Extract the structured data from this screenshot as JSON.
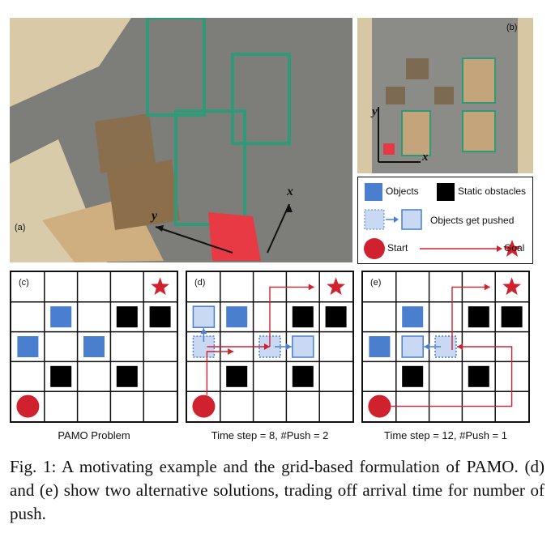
{
  "photo_a": {
    "label": "(a)",
    "axis_x": "x",
    "axis_y": "y"
  },
  "photo_b": {
    "label": "(b)",
    "axis_x": "x",
    "axis_y": "y"
  },
  "legend": {
    "objects": "Objects",
    "static_obstacles": "Static obstacles",
    "objects_pushed": "Objects get pushed",
    "start": "Start",
    "goal": "Goal"
  },
  "panel_c": {
    "label": "(c)",
    "caption": "PAMO Problem"
  },
  "panel_d": {
    "label": "(d)",
    "caption": "Time step = 8, #Push = 2"
  },
  "panel_e": {
    "label": "(e)",
    "caption": "Time step = 12, #Push = 1"
  },
  "figure_caption": "Fig. 1: A motivating example and the grid-based formulation of PAMO. (d) and (e) show two alternative solutions, trading off arrival time for number of push.",
  "colors": {
    "object": "#4a7fd0",
    "pushed_fill": "#c9d8f3",
    "obstacle": "#000000",
    "start": "#d0212e",
    "goal": "#d0212e",
    "arrow": "#d0212e",
    "push_arrow": "#4a7fd0"
  }
}
